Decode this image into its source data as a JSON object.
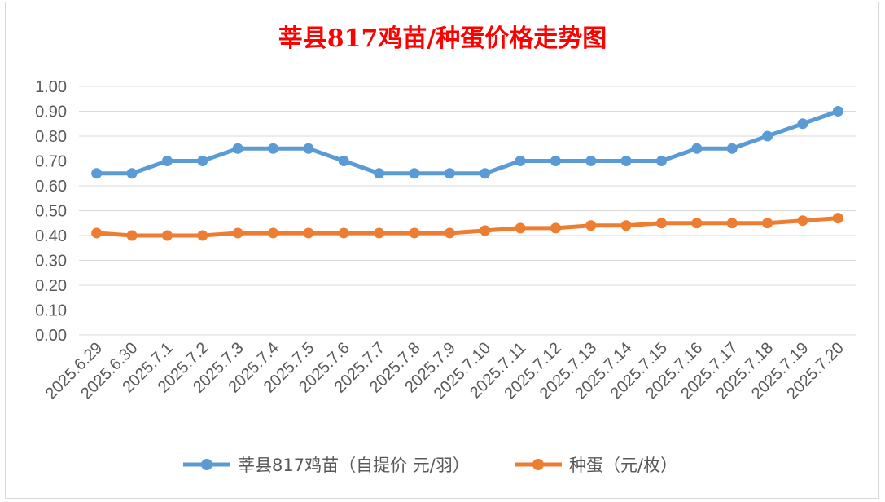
{
  "chart_data": {
    "type": "line",
    "title": "莘县817鸡苗/种蛋价格走势图",
    "categories": [
      "2025.6.29",
      "2025.6.30",
      "2025.7.1",
      "2025.7.2",
      "2025.7.3",
      "2025.7.4",
      "2025.7.5",
      "2025.7.6",
      "2025.7.7",
      "2025.7.8",
      "2025.7.9",
      "2025.7.10",
      "2025.7.11",
      "2025.7.12",
      "2025.7.13",
      "2025.7.14",
      "2025.7.15",
      "2025.7.16",
      "2025.7.17",
      "2025.7.18",
      "2025.7.19",
      "2025.7.20"
    ],
    "yticks": [
      "0.00",
      "0.10",
      "0.20",
      "0.30",
      "0.40",
      "0.50",
      "0.60",
      "0.70",
      "0.80",
      "0.90",
      "1.00"
    ],
    "ylim": [
      0,
      1.0
    ],
    "grid": true,
    "legend_position": "bottom",
    "series": [
      {
        "name": "莘县817鸡苗（自提价 元/羽）",
        "color": "#5b9bd5",
        "values": [
          0.65,
          0.65,
          0.7,
          0.7,
          0.75,
          0.75,
          0.75,
          0.7,
          0.65,
          0.65,
          0.65,
          0.65,
          0.7,
          0.7,
          0.7,
          0.7,
          0.7,
          0.75,
          0.75,
          0.8,
          0.85,
          0.9
        ]
      },
      {
        "name": "种蛋（元/枚）",
        "color": "#ed7d31",
        "values": [
          0.41,
          0.4,
          0.4,
          0.4,
          0.41,
          0.41,
          0.41,
          0.41,
          0.41,
          0.41,
          0.41,
          0.42,
          0.43,
          0.43,
          0.44,
          0.44,
          0.45,
          0.45,
          0.45,
          0.45,
          0.46,
          0.47
        ]
      }
    ]
  }
}
